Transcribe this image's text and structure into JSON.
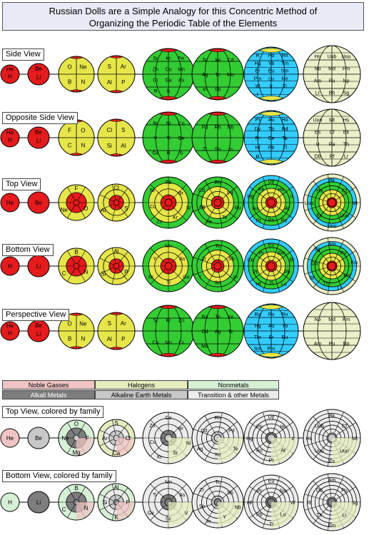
{
  "title_line1": "Russian Dolls are a Simple Analogy for this Concentric Method of",
  "title_line2": "Organizing the Periodic Table of the Elements",
  "colors": {
    "red": "#e41a1c",
    "yellow": "#e6e64a",
    "green": "#33cc33",
    "cyan": "#33ccff",
    "beige": "#ecefc8",
    "pink": "#f0c4c4",
    "halogen": "#e6ecbe",
    "nonmetal": "#d6f0d6",
    "alkali": "#7d7d7d",
    "alkaline": "#c8c8c8",
    "transition": "#ececec"
  },
  "rows": [
    {
      "label": "Side View",
      "style": "side",
      "spheres": [
        {
          "labels": [
            "He",
            "H"
          ]
        },
        {
          "labels": [
            "Be",
            "Li"
          ]
        },
        {
          "labels": [
            "O",
            "Ne",
            "B",
            "N"
          ]
        },
        {
          "labels": [
            "S",
            "Ar",
            "Al",
            "P"
          ]
        },
        {
          "labels": [
            "Sr",
            "Kr",
            "Fe",
            "Zn",
            "Cu",
            "Mn",
            "Cr",
            "Ga",
            "As",
            "R",
            "b"
          ]
        },
        {
          "labels": [
            "Te",
            "Xe",
            "Cd",
            "Ag",
            "Tc",
            "Mo",
            "In",
            "Sb"
          ]
        },
        {
          "labels": [
            "R",
            "Po",
            "Rn",
            "Hg",
            "Yb",
            "Tm",
            "Er",
            "Eu",
            "Sm",
            "Pm",
            "Lu",
            "Re",
            "W",
            "Ir",
            "Ti",
            "r"
          ]
        },
        {
          "labels": [
            "Hs",
            "Uub",
            "Uuu",
            "No",
            "Md",
            "Fm",
            "Am",
            "Pu",
            "Np",
            "Lr",
            "Bh",
            "Sg"
          ]
        }
      ]
    },
    {
      "label": "Opposite Side View",
      "style": "side",
      "spheres": [
        {
          "labels": [
            "He",
            "H"
          ]
        },
        {
          "labels": [
            "Be",
            "Li"
          ]
        },
        {
          "labels": [
            "F",
            "O",
            "C",
            "N"
          ]
        },
        {
          "labels": [
            "Cl",
            "S",
            "Si",
            "Al"
          ]
        },
        {
          "labels": [
            "Br",
            "Ni",
            "Co",
            "V",
            "Ti",
            "Ge",
            "Ga",
            "R",
            "b"
          ]
        },
        {
          "labels": [
            "Pd",
            "Rh",
            "Nb",
            "Zr",
            "Sn",
            "In"
          ]
        },
        {
          "labels": [
            "Pt",
            "Au",
            "Ho",
            "Dy",
            "Tb",
            "Nd",
            "Pr",
            "Ce",
            "Ta",
            "Hf",
            "Pb",
            "Tl",
            "R"
          ]
        },
        {
          "labels": [
            "Uun",
            "Mt",
            "Hs",
            "Es",
            "Cf",
            "Bk",
            "U",
            "Pa",
            "Th",
            "Db",
            "Rf",
            "Lr"
          ]
        }
      ]
    },
    {
      "label": "Top View",
      "style": "top",
      "spheres": [
        {
          "labels": [
            "He"
          ]
        },
        {
          "labels": [
            "Be"
          ]
        },
        {
          "labels": [
            "F",
            "O",
            "Ne"
          ]
        },
        {
          "labels": [
            "Cl",
            "S",
            "Ar"
          ]
        },
        {
          "labels": [
            "Rb",
            "Br",
            "Sr",
            "Kr",
            "Zn",
            "Cu",
            "Ni"
          ]
        },
        {
          "labels": [
            "Rh",
            "Pd",
            "Ru",
            "Te",
            "Xe",
            "Ag",
            "Cd"
          ]
        },
        {
          "labels": [
            "Dy",
            "Ho",
            "Ir",
            "At",
            "Po",
            "Rn",
            "Pt",
            "Au",
            "Hg",
            "Pb"
          ]
        },
        {
          "labels": [
            "Bk",
            "Cf",
            "Mt",
            "Uun",
            "Uuu",
            "Es",
            "Uub",
            "Hs"
          ]
        }
      ]
    },
    {
      "label": "Bottom View",
      "style": "bottom",
      "spheres": [
        {
          "labels": [
            "H"
          ]
        },
        {
          "labels": [
            "Li"
          ]
        },
        {
          "labels": [
            "B",
            "N",
            "C"
          ]
        },
        {
          "labels": [
            "Al",
            "P",
            "Si"
          ]
        },
        {
          "labels": [
            "Mn",
            "As",
            "Ge",
            "Ti",
            "Sc",
            "Y"
          ]
        },
        {
          "labels": [
            "Tc",
            "Sb",
            "In",
            "Sn",
            "Y",
            "Zr"
          ]
        },
        {
          "labels": [
            "Eu",
            "Sm",
            "Bi",
            "Pb",
            "Lu",
            "Tl",
            "Hf",
            "Pt",
            "Ce",
            "Pr"
          ]
        },
        {
          "labels": [
            "Am",
            "Pu",
            "Fm",
            "Md",
            "Lr",
            "Th",
            "Rf",
            "Db",
            "Sg"
          ]
        }
      ]
    },
    {
      "label": "Perspective View",
      "style": "persp",
      "spheres": [
        {
          "labels": [
            "He",
            "H"
          ]
        },
        {
          "labels": [
            "Be",
            "Li"
          ]
        },
        {
          "labels": [
            "O",
            "Ne",
            "B",
            "N"
          ]
        },
        {
          "labels": [
            "S",
            "Ar",
            "Al",
            "P"
          ]
        },
        {
          "labels": [
            "Sr",
            "Kr",
            "Zn",
            "Cu",
            "Mn",
            "Cr"
          ]
        },
        {
          "labels": [
            "Ba",
            "Te",
            "Xe",
            "Cd",
            "Ag",
            "Tc",
            "Mo"
          ]
        },
        {
          "labels": [
            "Ra",
            "Po",
            "Rn",
            "Hg",
            "Au",
            "Yb",
            "Tm",
            "Er",
            "Eu",
            "Sm",
            "Pm"
          ]
        },
        {
          "labels": [
            "No",
            "Md",
            "Fm",
            "Am",
            "Pu",
            "Np"
          ]
        }
      ]
    },
    {
      "label": "Top View, colored by family",
      "style": "family-top",
      "spheres": [
        {
          "labels": [
            "He"
          ]
        },
        {
          "labels": [
            "Be"
          ]
        },
        {
          "labels": [
            "O",
            "F",
            "Mg",
            "Ne"
          ]
        },
        {
          "labels": [
            "S",
            "Cl",
            "Ca",
            "Ar"
          ]
        },
        {
          "labels": [
            "Co",
            "Br",
            "Ni",
            "Sr",
            "Kr",
            "Cu",
            "Zn"
          ]
        },
        {
          "labels": [
            "Rh",
            "Pd",
            "Te",
            "Xe",
            "Ag",
            "Cd"
          ]
        },
        {
          "labels": [
            "Dy",
            "Ho",
            "Ir",
            "At",
            "Pt",
            "Au",
            "Hg",
            "Pb"
          ]
        },
        {
          "labels": [
            "Bk",
            "Cf",
            "Mt",
            "Uun",
            "Es",
            "Uuu",
            "Hs",
            "Uub"
          ]
        }
      ]
    },
    {
      "label": "Bottom View, colored by family",
      "style": "family-bottom",
      "spheres": [
        {
          "labels": [
            "H"
          ]
        },
        {
          "labels": [
            "Li"
          ]
        },
        {
          "labels": [
            "B",
            "N",
            "C"
          ]
        },
        {
          "labels": [
            "Al",
            "P",
            "K",
            "Si"
          ]
        },
        {
          "labels": [
            "Mn",
            "As",
            "V",
            "Sc",
            "Ge",
            "Ti"
          ]
        },
        {
          "labels": [
            "Tc",
            "Sb",
            "Nb",
            "Y",
            "In",
            "Sn",
            "Zr"
          ]
        },
        {
          "labels": [
            "Eu",
            "Sm",
            "W",
            "Lu",
            "Tl",
            "Pb",
            "Hf",
            "Pt"
          ]
        },
        {
          "labels": [
            "Am",
            "Pu",
            "Sg",
            "Lr",
            "Fm",
            "Th",
            "Rf",
            "Db"
          ]
        }
      ]
    }
  ],
  "legend": [
    {
      "label": "Noble Gasses",
      "color": "#f0c4c4"
    },
    {
      "label": "Halogens",
      "color": "#e6ecbe"
    },
    {
      "label": "Nonmetals",
      "color": "#d6f0d6"
    },
    {
      "label": "Alkali Metals",
      "color": "#7d7d7d"
    },
    {
      "label": "Alkaline Earth Metals",
      "color": "#c8c8c8"
    },
    {
      "label": "Transition & other Metals",
      "color": "#ececec"
    }
  ]
}
